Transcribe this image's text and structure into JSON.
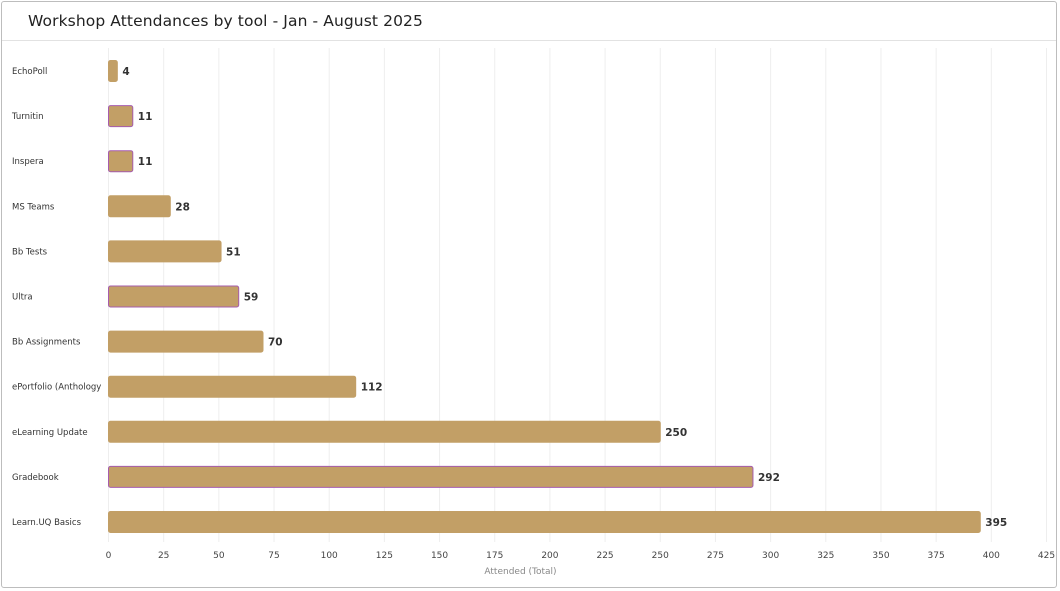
{
  "title": "Workshop Attendances by tool - Jan - August 2025",
  "colors": {
    "bar": "#c29f66",
    "bar_outline_alt": "#a55cae",
    "grid": "#eeeeee"
  },
  "chart_data": {
    "type": "bar",
    "orientation": "horizontal",
    "title": "Workshop Attendances by tool - Jan - August 2025",
    "xlabel": "Attended (Total)",
    "ylabel": "",
    "xlim": [
      0,
      425
    ],
    "xticks": [
      0,
      25,
      50,
      75,
      100,
      125,
      150,
      175,
      200,
      225,
      250,
      275,
      300,
      325,
      350,
      375,
      400,
      425
    ],
    "grid": true,
    "categories": [
      "EchoPoll",
      "Turnitin",
      "Inspera",
      "MS Teams",
      "Bb Tests",
      "Ultra",
      "Bb Assignments",
      "ePortfolio (Anthology",
      "eLearning Update",
      "Gradebook",
      "Learn.UQ Basics"
    ],
    "values": [
      4,
      11,
      11,
      28,
      51,
      59,
      70,
      112,
      250,
      292,
      395
    ]
  }
}
